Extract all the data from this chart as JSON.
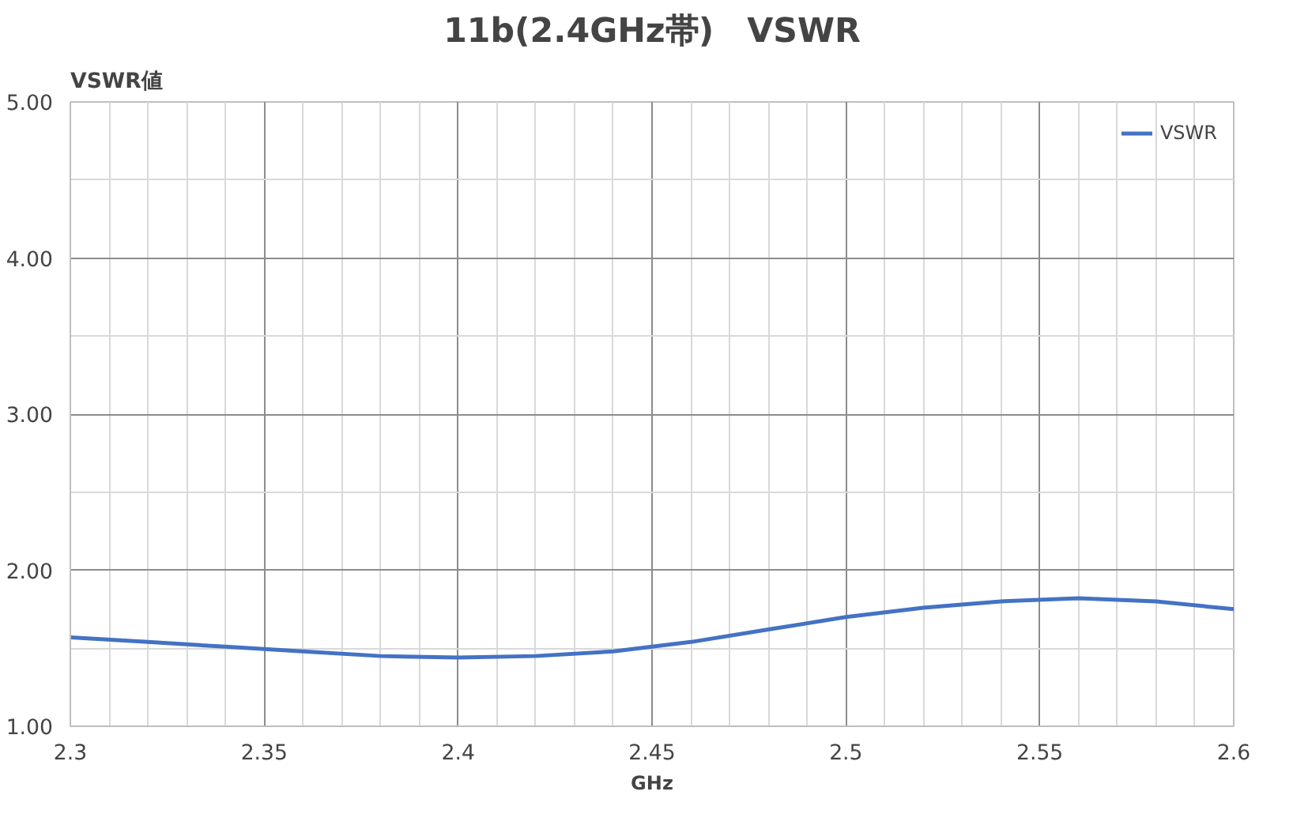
{
  "chart_data": {
    "type": "line",
    "title": "11b(2.4GHz帯)　VSWR",
    "xlabel": "GHz",
    "ylabel": "VSWR値",
    "x": [
      2.3,
      2.32,
      2.34,
      2.36,
      2.38,
      2.4,
      2.42,
      2.44,
      2.46,
      2.48,
      2.5,
      2.52,
      2.54,
      2.56,
      2.58,
      2.6
    ],
    "series": [
      {
        "name": "VSWR",
        "color": "#4472c4",
        "values": [
          1.57,
          1.54,
          1.51,
          1.48,
          1.45,
          1.44,
          1.45,
          1.48,
          1.54,
          1.62,
          1.7,
          1.76,
          1.8,
          1.82,
          1.8,
          1.75
        ]
      }
    ],
    "xlim": [
      2.3,
      2.6
    ],
    "xticks": [
      2.3,
      2.35,
      2.4,
      2.45,
      2.5,
      2.55,
      2.6
    ],
    "ylim": [
      1,
      5
    ],
    "yticks": [
      {
        "value": 1,
        "label": "1.00"
      },
      {
        "value": 2,
        "label": "2.00"
      },
      {
        "value": 3,
        "label": "3.00"
      },
      {
        "value": 4,
        "label": "4.00"
      },
      {
        "value": 5,
        "label": "5.00"
      }
    ],
    "grid": true,
    "legend": "top right",
    "marker": "none",
    "line_style": "solid"
  }
}
